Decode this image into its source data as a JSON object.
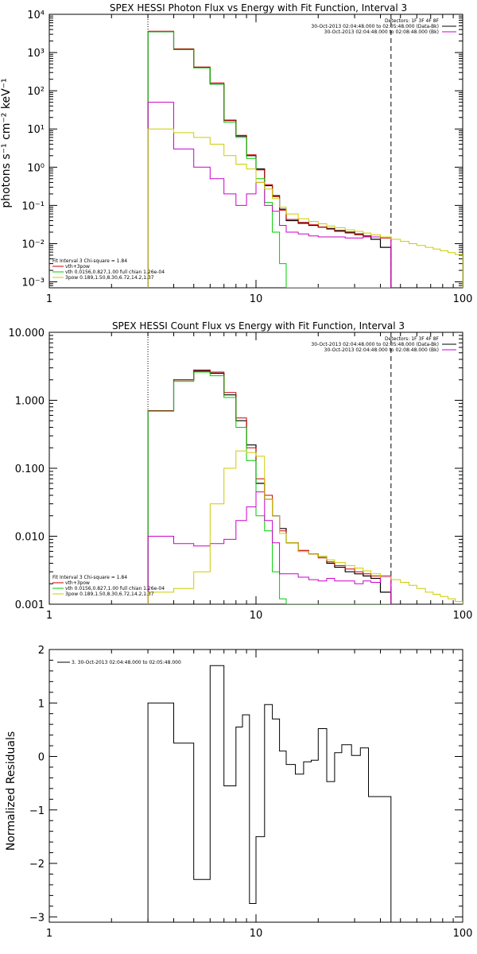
{
  "chart_data": [
    {
      "type": "line",
      "title": "SPEX HESSI Photon Flux vs Energy with Fit Function, Interval 3",
      "xlabel": "",
      "ylabel": "photons s⁻¹ cm⁻² keV⁻¹",
      "xscale": "log",
      "yscale": "log",
      "xlim": [
        1,
        100
      ],
      "ylim": [
        0.0007,
        10000
      ],
      "xticks": [
        {
          "v": 1,
          "label": "1"
        },
        {
          "v": 10,
          "label": "10"
        },
        {
          "v": 100,
          "label": "100"
        }
      ],
      "yticks": [
        {
          "v": 0.001,
          "label": "10⁻³"
        },
        {
          "v": 0.01,
          "label": "10⁻²"
        },
        {
          "v": 0.1,
          "label": "10⁻¹"
        },
        {
          "v": 1,
          "label": "10⁰"
        },
        {
          "v": 10,
          "label": "10¹"
        },
        {
          "v": 100,
          "label": "10²"
        },
        {
          "v": 1000,
          "label": "10³"
        },
        {
          "v": 10000,
          "label": "10⁴"
        }
      ],
      "vlines": [
        {
          "x": 3.0,
          "style": "dotted"
        },
        {
          "x": 45,
          "style": "dashed"
        }
      ],
      "legend_top_right": [
        {
          "text": "Detectors: 1F 3F 4F 8F",
          "color": "#000000"
        },
        {
          "text": "30-Oct-2013 02:04:48.000 to 02:05:48.000 (Data-Bk)",
          "color": "#000000"
        },
        {
          "text": "30-Oct-2013 02:04:48.000 to 02:08:48.000 (Bk)",
          "color": "#cc00cc"
        }
      ],
      "legend_bottom_left": [
        {
          "text": "Fit Interval 3    Chi-square = 1.84",
          "color": "#000000"
        },
        {
          "text": "vth+3pow",
          "color": "#cc0000"
        },
        {
          "text": "vth 0.0156,0.827,1.00  full chian 1.26e-04",
          "color": "#00cc00"
        },
        {
          "text": "3pow 0.189,1.50,8.30,6.72,14.2,1.37",
          "color": "#cccc00"
        }
      ],
      "edges": [
        3.0,
        3.5,
        4.0,
        5.0,
        6.0,
        7.0,
        8.0,
        9.0,
        10.0,
        11.0,
        12.0,
        13.0,
        14.0,
        16.0,
        18.0,
        20.0,
        22.0,
        24.0,
        27.0,
        30.0,
        33.0,
        36.0,
        40.0,
        45.0
      ],
      "series": [
        {
          "name": "Data-Bk",
          "color": "#000000",
          "stroke_width": 1.2,
          "x_start": 3.0,
          "x_end": 45,
          "values": [
            3500,
            3500,
            1200,
            400,
            150,
            17,
            6.5,
            2.0,
            0.9,
            0.33,
            0.18,
            0.08,
            0.04,
            0.034,
            0.03,
            0.027,
            0.025,
            0.022,
            0.02,
            0.018,
            0.016,
            0.013,
            0.008
          ]
        },
        {
          "name": "vth+3pow",
          "color": "#cc0000",
          "stroke_width": 1.0,
          "x_start": 3.0,
          "x_end": 45,
          "values": [
            3600,
            3600,
            1250,
            420,
            160,
            16.5,
            6.8,
            2.1,
            0.85,
            0.35,
            0.17,
            0.075,
            0.043,
            0.036,
            0.031,
            0.027,
            0.024,
            0.021,
            0.019,
            0.017,
            0.016,
            0.015,
            0.014
          ]
        },
        {
          "name": "vth",
          "color": "#00cc00",
          "stroke_width": 1.0,
          "x_start": 3.0,
          "x_end": 45,
          "values": [
            3500,
            3500,
            1200,
            400,
            150,
            15,
            6.0,
            1.7,
            0.5,
            0.12,
            0.02,
            0.003,
            0.0007,
            0.0007,
            0.0007,
            0.0007,
            0.0007,
            0.0007,
            0.0007,
            0.0007,
            0.0007,
            0.0007,
            0.0007
          ]
        },
        {
          "name": "Bk",
          "color": "#cc00cc",
          "stroke_width": 1.0,
          "x_start": 3.0,
          "x_end": 45,
          "values": [
            50,
            50,
            3.0,
            1.0,
            0.5,
            0.2,
            0.1,
            0.2,
            0.4,
            0.1,
            0.07,
            0.03,
            0.02,
            0.018,
            0.016,
            0.015,
            0.015,
            0.015,
            0.014,
            0.014,
            0.015,
            0.015,
            0.015
          ]
        },
        {
          "name": "3pow",
          "color": "#cccc00",
          "stroke_width": 1.0,
          "x_start": 3.0,
          "x_end": 100,
          "values": [
            10,
            10,
            8.0,
            6.0,
            4.0,
            2.0,
            1.2,
            0.9,
            0.4,
            0.27,
            0.15,
            0.09,
            0.06,
            0.045,
            0.038,
            0.033,
            0.029,
            0.026,
            0.023,
            0.021,
            0.019,
            0.017,
            0.015,
            0.013,
            0.0115,
            0.01,
            0.009,
            0.008,
            0.0072,
            0.0065,
            0.0058,
            0.0052,
            0.0047,
            0.0042
          ],
          "extra_edges": [
            45,
            50,
            55,
            60,
            66,
            72,
            78,
            85,
            92,
            100
          ]
        }
      ]
    },
    {
      "type": "line",
      "title": "SPEX HESSI Count Flux vs Energy with Fit Function, Interval 3",
      "xlabel": "",
      "ylabel": "",
      "xscale": "log",
      "yscale": "log",
      "xlim": [
        1,
        100
      ],
      "ylim": [
        0.001,
        10
      ],
      "xticks": [
        {
          "v": 1,
          "label": "1"
        },
        {
          "v": 10,
          "label": "10"
        },
        {
          "v": 100,
          "label": "100"
        }
      ],
      "yticks": [
        {
          "v": 0.001,
          "label": "0.001"
        },
        {
          "v": 0.01,
          "label": "0.010"
        },
        {
          "v": 0.1,
          "label": "0.100"
        },
        {
          "v": 1,
          "label": "1.000"
        },
        {
          "v": 10,
          "label": "10.000"
        }
      ],
      "vlines": [
        {
          "x": 3.0,
          "style": "dotted"
        },
        {
          "x": 45,
          "style": "dashed"
        }
      ],
      "legend_top_right": [
        {
          "text": "Detectors: 1F 3F 4F 8F",
          "color": "#000000"
        },
        {
          "text": "30-Oct-2013 02:04:48.000 to 02:05:48.000 (Data-Bk)",
          "color": "#000000"
        },
        {
          "text": "30-Oct-2013 02:04:48.000 to 02:08:48.000 (Bk)",
          "color": "#cc00cc"
        }
      ],
      "legend_bottom_left": [
        {
          "text": "Fit Interval 3    Chi-square = 1.84",
          "color": "#000000"
        },
        {
          "text": "vth+3pow",
          "color": "#cc0000"
        },
        {
          "text": "vth 0.0156,0.827,1.00  full chian 1.26e-04",
          "color": "#00cc00"
        },
        {
          "text": "3pow 0.189,1.50,8.30,6.72,14.2,1.37",
          "color": "#cccc00"
        }
      ],
      "edges": [
        3.0,
        3.5,
        4.0,
        5.0,
        6.0,
        7.0,
        8.0,
        9.0,
        10.0,
        11.0,
        12.0,
        13.0,
        14.0,
        16.0,
        18.0,
        20.0,
        22.0,
        24.0,
        27.0,
        30.0,
        33.0,
        36.0,
        40.0,
        45.0
      ],
      "series": [
        {
          "name": "Data-Bk",
          "color": "#000000",
          "stroke_width": 1.2,
          "x_start": 3.0,
          "x_end": 45,
          "values": [
            0.7,
            0.7,
            2.0,
            2.7,
            2.5,
            1.2,
            0.5,
            0.22,
            0.06,
            0.035,
            0.02,
            0.013,
            0.008,
            0.006,
            0.0055,
            0.005,
            0.004,
            0.0035,
            0.003,
            0.0028,
            0.0026,
            0.0024,
            0.0015
          ]
        },
        {
          "name": "vth+3pow",
          "color": "#cc0000",
          "stroke_width": 1.0,
          "x_start": 3.0,
          "x_end": 45,
          "values": [
            0.7,
            0.7,
            2.0,
            2.8,
            2.6,
            1.3,
            0.55,
            0.2,
            0.07,
            0.04,
            0.02,
            0.012,
            0.008,
            0.0062,
            0.0055,
            0.0048,
            0.0042,
            0.0037,
            0.0033,
            0.003,
            0.0028,
            0.0026,
            0.0025
          ]
        },
        {
          "name": "vth",
          "color": "#00cc00",
          "stroke_width": 1.0,
          "x_start": 3.0,
          "x_end": 45,
          "values": [
            0.69,
            0.69,
            1.9,
            2.6,
            2.3,
            1.1,
            0.4,
            0.13,
            0.02,
            0.012,
            0.003,
            0.0012,
            0.0009,
            0.0009,
            0.0009,
            0.0009,
            0.0009,
            0.0009,
            0.0009,
            0.0009,
            0.0009,
            0.0009,
            0.0009
          ]
        },
        {
          "name": "Bk",
          "color": "#cc00cc",
          "stroke_width": 1.0,
          "x_start": 3.0,
          "x_end": 45,
          "values": [
            0.01,
            0.01,
            0.0078,
            0.0072,
            0.0078,
            0.009,
            0.017,
            0.027,
            0.045,
            0.017,
            0.008,
            0.0028,
            0.0028,
            0.0025,
            0.0023,
            0.0022,
            0.0024,
            0.0022,
            0.0022,
            0.002,
            0.0022,
            0.0021,
            0.0026
          ]
        },
        {
          "name": "3pow",
          "color": "#cccc00",
          "stroke_width": 1.0,
          "x_start": 3.0,
          "x_end": 100,
          "values": [
            0.0015,
            0.0015,
            0.0017,
            0.003,
            0.03,
            0.1,
            0.18,
            0.17,
            0.15,
            0.035,
            0.02,
            0.011,
            0.008,
            0.006,
            0.0055,
            0.005,
            0.0045,
            0.0041,
            0.0037,
            0.0034,
            0.0031,
            0.0028,
            0.0025,
            0.0023,
            0.0021,
            0.0019,
            0.0017,
            0.0015,
            0.0014,
            0.0013,
            0.0012,
            0.0011,
            0.00105,
            0.001
          ],
          "extra_edges": [
            45,
            50,
            55,
            60,
            66,
            72,
            78,
            85,
            92,
            100
          ]
        }
      ]
    },
    {
      "type": "line",
      "title": "",
      "xlabel": "",
      "ylabel": "Normalized Residuals",
      "xscale": "log",
      "yscale": "linear",
      "xlim": [
        1,
        100
      ],
      "ylim": [
        -3.1,
        2
      ],
      "xticks": [
        {
          "v": 1,
          "label": "1"
        },
        {
          "v": 10,
          "label": "10"
        },
        {
          "v": 100,
          "label": "100"
        }
      ],
      "yticks": [
        {
          "v": -3,
          "label": "−3"
        },
        {
          "v": -2,
          "label": "−2"
        },
        {
          "v": -1,
          "label": "−1"
        },
        {
          "v": 0,
          "label": "0"
        },
        {
          "v": 1,
          "label": "1"
        },
        {
          "v": 2,
          "label": "2"
        }
      ],
      "legend_top_left": [
        {
          "text": "3. 30-Oct-2013 02:04:48.000 to 02:05:48.000",
          "color": "#000000"
        }
      ],
      "edges": [
        3.0,
        4.0,
        5.0,
        6.0,
        6.5,
        7.0,
        8.0,
        8.6,
        9.3,
        10.0,
        11.0,
        12.0,
        13.0,
        14.0,
        15.5,
        17.0,
        18.5,
        20.0,
        22.0,
        24.0,
        26.0,
        29.0,
        32.0,
        35.0,
        40.0,
        42.0,
        45.0
      ],
      "series": [
        {
          "name": "residuals",
          "color": "#000000",
          "stroke_width": 1.0,
          "x_start": 3.0,
          "x_end": 45,
          "values": [
            1.0,
            0.25,
            -2.3,
            1.7,
            1.7,
            -0.55,
            0.55,
            0.78,
            -2.75,
            -1.5,
            0.97,
            0.7,
            0.1,
            -0.15,
            -0.33,
            -0.1,
            -0.07,
            0.52,
            -0.47,
            0.07,
            0.22,
            0.02,
            0.16,
            -0.75,
            -0.75,
            -0.75
          ]
        }
      ]
    }
  ]
}
